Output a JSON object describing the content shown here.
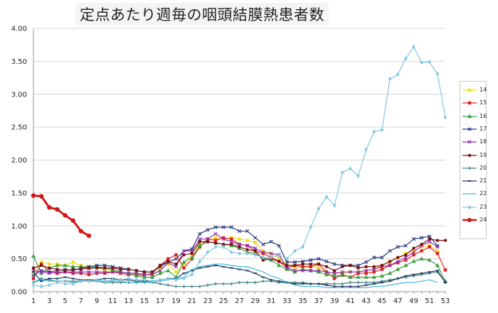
{
  "title": "定点あたり週毎の咽頭結膜熱患者数",
  "chart_data": {
    "type": "line",
    "title": "定点あたり週毎の咽頭結膜熱患者数",
    "xlabel": "",
    "ylabel": "",
    "xlim": [
      1,
      53
    ],
    "ylim": [
      0,
      4
    ],
    "x_ticks": [
      1,
      3,
      5,
      7,
      9,
      11,
      13,
      15,
      17,
      19,
      21,
      23,
      25,
      27,
      29,
      31,
      33,
      35,
      37,
      39,
      41,
      43,
      45,
      47,
      49,
      51,
      53
    ],
    "y_ticks": [
      "0.00",
      "0.50",
      "1.00",
      "1.50",
      "2.00",
      "2.50",
      "3.00",
      "3.50",
      "4.00"
    ],
    "legend_position": "right",
    "series": [
      {
        "name": "14",
        "color": "#f0e020",
        "marker": "square",
        "values": [
          0.28,
          0.45,
          0.42,
          0.42,
          0.4,
          0.45,
          0.4,
          0.38,
          0.36,
          0.34,
          0.32,
          0.3,
          0.28,
          0.28,
          0.26,
          0.25,
          0.35,
          0.42,
          0.3,
          0.42,
          0.58,
          0.72,
          0.78,
          0.82,
          0.8,
          0.82,
          0.8,
          0.78,
          0.75,
          0.62,
          0.58,
          0.5,
          0.42,
          0.36,
          0.38,
          0.4,
          0.36,
          0.3,
          0.28,
          0.28,
          0.3,
          0.3,
          0.32,
          0.34,
          0.4,
          0.45,
          0.52,
          0.58,
          0.62,
          0.68,
          0.7,
          0.62
        ]
      },
      {
        "name": "15",
        "color": "#e02020",
        "marker": "square",
        "values": [
          0.2,
          0.42,
          0.3,
          0.28,
          0.3,
          0.28,
          0.28,
          0.26,
          0.28,
          0.28,
          0.3,
          0.28,
          0.26,
          0.26,
          0.25,
          0.28,
          0.4,
          0.5,
          0.56,
          0.36,
          0.5,
          0.68,
          0.8,
          0.78,
          0.82,
          0.8,
          0.72,
          0.7,
          0.62,
          0.58,
          0.52,
          0.46,
          0.36,
          0.4,
          0.38,
          0.38,
          0.42,
          0.3,
          0.2,
          0.26,
          0.22,
          0.28,
          0.28,
          0.3,
          0.34,
          0.4,
          0.44,
          0.48,
          0.56,
          0.62,
          0.68,
          0.58,
          0.33
        ]
      },
      {
        "name": "16",
        "color": "#40a040",
        "marker": "triangle",
        "values": [
          0.54,
          0.28,
          0.36,
          0.4,
          0.4,
          0.38,
          0.38,
          0.36,
          0.38,
          0.36,
          0.34,
          0.3,
          0.28,
          0.24,
          0.22,
          0.22,
          0.28,
          0.32,
          0.22,
          0.45,
          0.52,
          0.7,
          0.76,
          0.74,
          0.72,
          0.7,
          0.66,
          0.6,
          0.58,
          0.52,
          0.48,
          0.4,
          0.34,
          0.3,
          0.34,
          0.32,
          0.3,
          0.26,
          0.24,
          0.25,
          0.22,
          0.22,
          0.22,
          0.22,
          0.24,
          0.28,
          0.34,
          0.4,
          0.46,
          0.5,
          0.48,
          0.4,
          0.16
        ]
      },
      {
        "name": "17",
        "color": "#2a3a80",
        "marker": "x",
        "values": [
          0.25,
          0.32,
          0.3,
          0.32,
          0.34,
          0.32,
          0.36,
          0.38,
          0.4,
          0.4,
          0.38,
          0.36,
          0.34,
          0.32,
          0.3,
          0.3,
          0.38,
          0.45,
          0.5,
          0.62,
          0.65,
          0.88,
          0.94,
          0.98,
          0.98,
          0.98,
          0.92,
          0.92,
          0.82,
          0.72,
          0.76,
          0.7,
          0.45,
          0.45,
          0.46,
          0.48,
          0.5,
          0.46,
          0.42,
          0.4,
          0.4,
          0.4,
          0.45,
          0.52,
          0.52,
          0.62,
          0.68,
          0.7,
          0.8,
          0.82,
          0.84,
          0.7
        ]
      },
      {
        "name": "18",
        "color": "#9030b0",
        "marker": "x",
        "values": [
          0.32,
          0.3,
          0.28,
          0.3,
          0.3,
          0.3,
          0.3,
          0.3,
          0.3,
          0.3,
          0.3,
          0.3,
          0.28,
          0.28,
          0.26,
          0.26,
          0.32,
          0.44,
          0.38,
          0.62,
          0.62,
          0.8,
          0.8,
          0.88,
          0.8,
          0.76,
          0.72,
          0.7,
          0.66,
          0.6,
          0.58,
          0.56,
          0.36,
          0.32,
          0.32,
          0.32,
          0.32,
          0.3,
          0.28,
          0.3,
          0.3,
          0.3,
          0.32,
          0.34,
          0.38,
          0.4,
          0.46,
          0.52,
          0.6,
          0.7,
          0.76,
          0.68
        ]
      },
      {
        "name": "19",
        "color": "#7a1010",
        "marker": "circle",
        "values": [
          0.36,
          0.4,
          0.36,
          0.34,
          0.32,
          0.34,
          0.34,
          0.36,
          0.36,
          0.36,
          0.36,
          0.34,
          0.34,
          0.32,
          0.3,
          0.3,
          0.4,
          0.46,
          0.42,
          0.56,
          0.58,
          0.76,
          0.76,
          0.74,
          0.72,
          0.72,
          0.68,
          0.64,
          0.62,
          0.48,
          0.5,
          0.46,
          0.4,
          0.4,
          0.42,
          0.42,
          0.42,
          0.38,
          0.32,
          0.38,
          0.4,
          0.36,
          0.38,
          0.38,
          0.4,
          0.46,
          0.52,
          0.56,
          0.66,
          0.72,
          0.8,
          0.78,
          0.78
        ]
      },
      {
        "name": "20",
        "color": "#408080",
        "marker": "plus",
        "values": [
          0.14,
          0.2,
          0.18,
          0.16,
          0.16,
          0.16,
          0.16,
          0.16,
          0.16,
          0.14,
          0.14,
          0.14,
          0.14,
          0.14,
          0.14,
          0.14,
          0.12,
          0.1,
          0.08,
          0.08,
          0.08,
          0.08,
          0.1,
          0.12,
          0.12,
          0.12,
          0.14,
          0.14,
          0.14,
          0.16,
          0.16,
          0.14,
          0.14,
          0.14,
          0.14,
          0.12,
          0.12,
          0.12,
          0.12,
          0.12,
          0.14,
          0.14,
          0.14,
          0.14,
          0.16,
          0.18,
          0.2,
          0.22,
          0.24,
          0.26,
          0.28,
          0.3,
          0.14
        ]
      },
      {
        "name": "21",
        "color": "#203860",
        "marker": "dash",
        "values": [
          0.3,
          0.16,
          0.2,
          0.2,
          0.22,
          0.2,
          0.18,
          0.18,
          0.18,
          0.2,
          0.2,
          0.18,
          0.18,
          0.16,
          0.16,
          0.16,
          0.18,
          0.2,
          0.2,
          0.28,
          0.32,
          0.36,
          0.38,
          0.4,
          0.38,
          0.36,
          0.34,
          0.32,
          0.28,
          0.22,
          0.18,
          0.16,
          0.14,
          0.12,
          0.12,
          0.12,
          0.12,
          0.1,
          0.08,
          0.08,
          0.08,
          0.08,
          0.1,
          0.12,
          0.14,
          0.16,
          0.2,
          0.24,
          0.26,
          0.28,
          0.3,
          0.32,
          0.14
        ]
      },
      {
        "name": "22",
        "color": "#40b8d8",
        "marker": "none",
        "values": [
          0.14,
          0.18,
          0.16,
          0.16,
          0.16,
          0.14,
          0.16,
          0.16,
          0.16,
          0.16,
          0.16,
          0.16,
          0.14,
          0.14,
          0.14,
          0.14,
          0.16,
          0.18,
          0.2,
          0.22,
          0.34,
          0.38,
          0.4,
          0.42,
          0.42,
          0.4,
          0.38,
          0.38,
          0.34,
          0.3,
          0.24,
          0.2,
          0.14,
          0.1,
          0.08,
          0.08,
          0.08,
          0.06,
          0.06,
          0.06,
          0.06,
          0.06,
          0.06,
          0.08,
          0.08,
          0.1,
          0.12,
          0.14,
          0.14,
          0.16,
          0.18,
          0.14
        ]
      },
      {
        "name": "23",
        "color": "#80c8e0",
        "marker": "diamond",
        "values": [
          0.1,
          0.08,
          0.1,
          0.14,
          0.12,
          0.12,
          0.16,
          0.16,
          0.18,
          0.16,
          0.18,
          0.18,
          0.2,
          0.18,
          0.18,
          0.16,
          0.18,
          0.2,
          0.18,
          0.2,
          0.26,
          0.46,
          0.6,
          0.68,
          0.68,
          0.6,
          0.58,
          0.58,
          0.56,
          0.52,
          0.52,
          0.56,
          0.5,
          0.62,
          0.68,
          0.98,
          1.26,
          1.44,
          1.31,
          1.81,
          1.87,
          1.76,
          2.16,
          2.43,
          2.46,
          3.23,
          3.3,
          3.54,
          3.72,
          3.48,
          3.49,
          3.31,
          2.65
        ]
      },
      {
        "name": "24",
        "color": "#d01818",
        "marker": "circle",
        "values": [
          1.46,
          1.45,
          1.28,
          1.25,
          1.16,
          1.08,
          0.92,
          0.85
        ]
      }
    ]
  }
}
